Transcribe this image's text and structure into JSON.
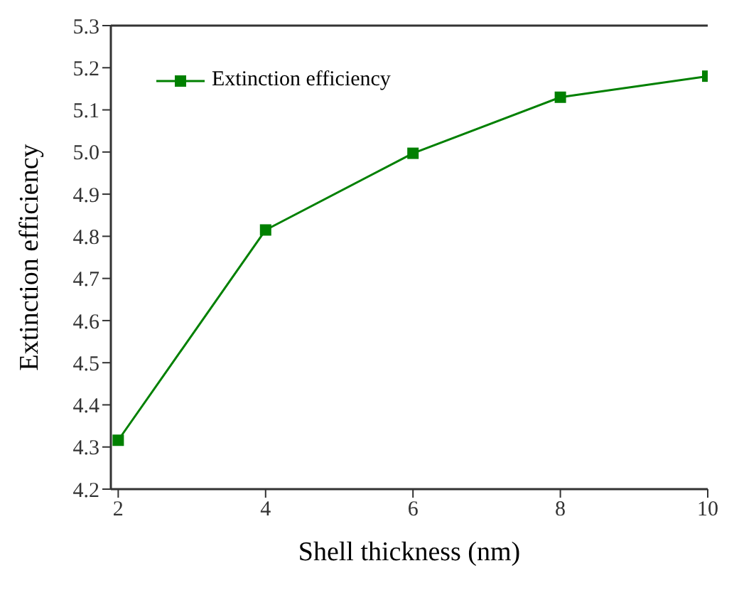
{
  "chart_data": {
    "type": "line",
    "xlabel": "Shell thickness (nm)",
    "ylabel": "Extinction efficiency",
    "x": [
      2,
      4,
      6,
      8,
      10
    ],
    "series": [
      {
        "name": "Extinction efficiency",
        "color": "#008000",
        "values": [
          4.316,
          4.815,
          4.997,
          5.13,
          5.18
        ]
      }
    ],
    "xlim": [
      1.9,
      10
    ],
    "xticks": [
      2,
      4,
      6,
      8,
      10
    ],
    "ylim": [
      4.2,
      5.3
    ],
    "yticks": [
      4.2,
      4.3,
      4.4,
      4.5,
      4.6,
      4.7,
      4.8,
      4.9,
      {
        "value": 5,
        "label": "5.0"
      },
      5.1,
      5.2,
      5.3
    ],
    "marker": "square",
    "line_style": "solid",
    "legend": "top left",
    "grid": false
  }
}
